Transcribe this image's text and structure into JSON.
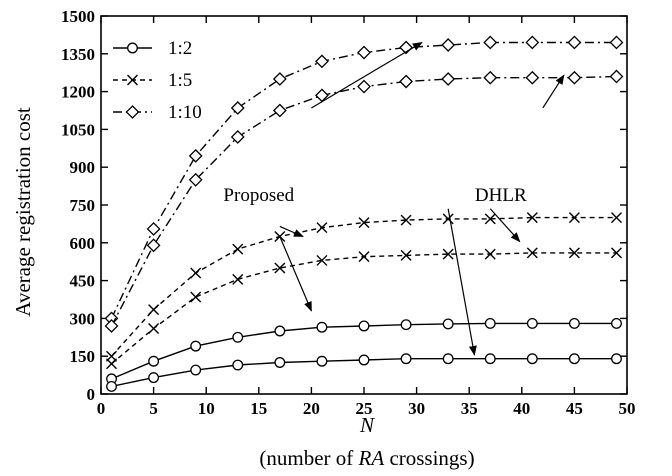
{
  "chart_data": {
    "type": "line",
    "xlabel": "N",
    "xlabel_sub_prefix": "(number of ",
    "xlabel_sub_italic": "RA",
    "xlabel_sub_suffix": " crossings)",
    "ylabel": "Average registration cost",
    "xlim": [
      0,
      50
    ],
    "ylim": [
      0,
      1500
    ],
    "x_ticks": [
      0,
      5,
      10,
      15,
      20,
      25,
      30,
      35,
      40,
      45,
      50
    ],
    "y_ticks": [
      0,
      150,
      300,
      450,
      600,
      750,
      900,
      1050,
      1200,
      1350,
      1500
    ],
    "grid": false,
    "legend_position": "top-left",
    "legend": [
      {
        "label": "1:2",
        "line_style": "solid",
        "marker": "circle"
      },
      {
        "label": "1:5",
        "line_style": "dashed",
        "marker": "x"
      },
      {
        "label": "1:10",
        "line_style": "dashdot",
        "marker": "diamond"
      }
    ],
    "x": [
      1,
      5,
      9,
      13,
      17,
      21,
      25,
      29,
      33,
      37,
      41,
      45,
      49
    ],
    "series": [
      {
        "ratio": "1:2",
        "scheme": "Proposed",
        "line_style": "solid",
        "marker": "circle",
        "values": [
          60,
          130,
          190,
          225,
          250,
          265,
          270,
          275,
          278,
          280,
          280,
          280,
          280
        ]
      },
      {
        "ratio": "1:2",
        "scheme": "DHLR",
        "line_style": "solid",
        "marker": "circle",
        "values": [
          30,
          65,
          95,
          115,
          125,
          130,
          135,
          140,
          140,
          140,
          140,
          140,
          140
        ]
      },
      {
        "ratio": "1:5",
        "scheme": "Proposed",
        "line_style": "dashed",
        "marker": "x",
        "values": [
          150,
          335,
          480,
          575,
          625,
          660,
          680,
          690,
          695,
          695,
          700,
          700,
          700
        ]
      },
      {
        "ratio": "1:5",
        "scheme": "DHLR",
        "line_style": "dashed",
        "marker": "x",
        "values": [
          120,
          260,
          385,
          455,
          500,
          530,
          545,
          550,
          555,
          555,
          560,
          560,
          560
        ]
      },
      {
        "ratio": "1:10",
        "scheme": "Proposed",
        "line_style": "dashdot",
        "marker": "diamond",
        "values": [
          300,
          655,
          945,
          1135,
          1250,
          1320,
          1355,
          1375,
          1385,
          1395,
          1395,
          1395,
          1395
        ]
      },
      {
        "ratio": "1:10",
        "scheme": "DHLR",
        "line_style": "dashdot",
        "marker": "diamond",
        "values": [
          270,
          590,
          850,
          1020,
          1125,
          1185,
          1220,
          1240,
          1250,
          1255,
          1255,
          1255,
          1260
        ]
      }
    ],
    "annotations": [
      {
        "text": "Proposed",
        "text_anchor": [
          15,
          790
        ],
        "arrows": [
          [
            20,
            1135,
            30.5,
            1395
          ],
          [
            17,
            665,
            19.2,
            625
          ],
          [
            17,
            625,
            20,
            330
          ]
        ]
      },
      {
        "text": "DHLR",
        "text_anchor": [
          38,
          790
        ],
        "arrows": [
          [
            42,
            1135,
            44,
            1265
          ],
          [
            37,
            735,
            39.8,
            605
          ],
          [
            33,
            735,
            35.5,
            155
          ]
        ]
      }
    ]
  }
}
